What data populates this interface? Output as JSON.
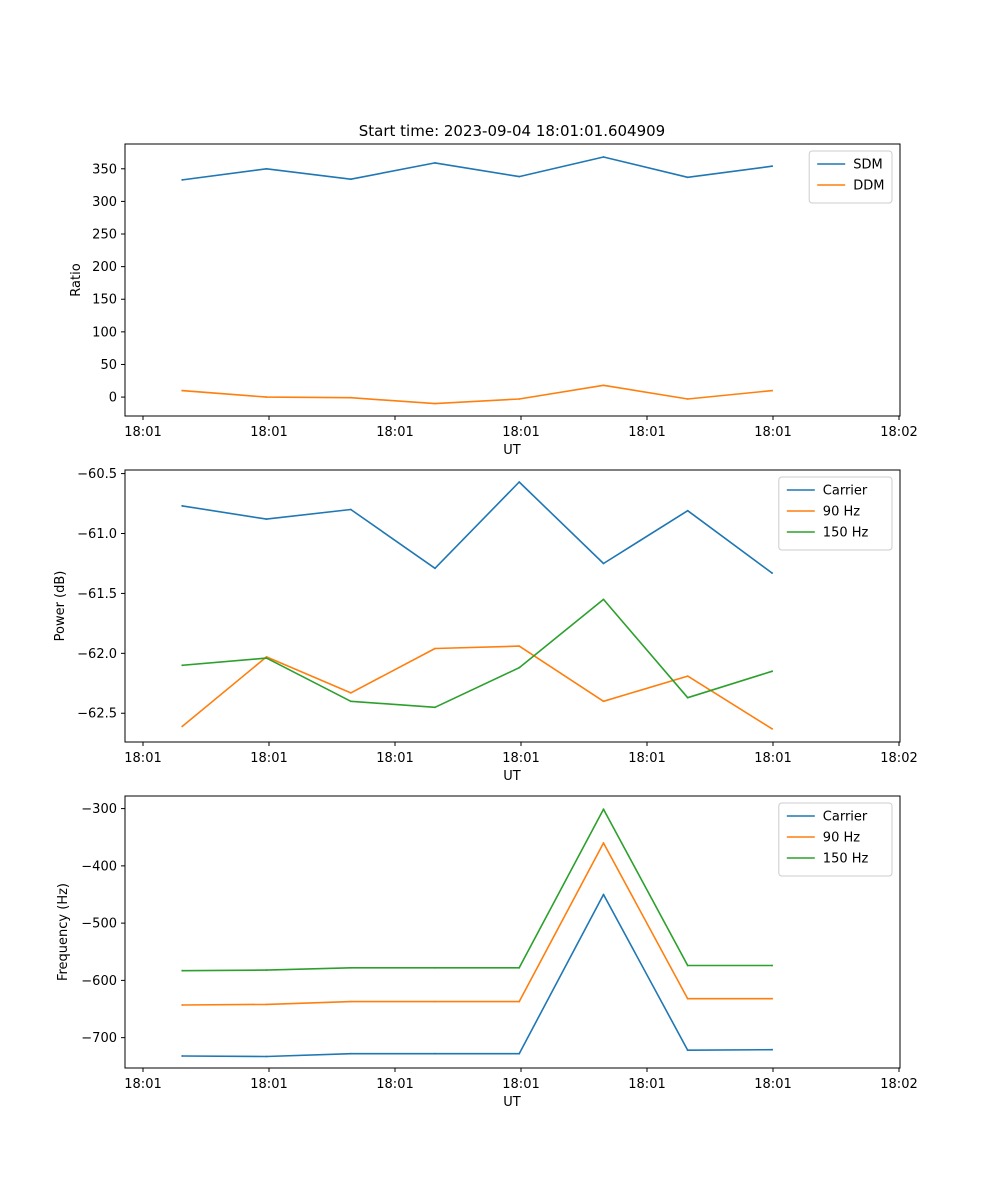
{
  "figure_title": "Start time: 2023-09-04 18:01:01.604909",
  "colors": {
    "blue": "#1f77b4",
    "orange": "#ff7f0e",
    "green": "#2ca02c"
  },
  "chart_data": [
    {
      "type": "line",
      "title": "Start time: 2023-09-04 18:01:01.604909",
      "xlabel": "UT",
      "ylabel": "Ratio",
      "x_tick_labels": [
        "18:01",
        "18:01",
        "18:01",
        "18:01",
        "18:01",
        "18:01",
        "18:02"
      ],
      "y_ticks": [
        0,
        50,
        100,
        150,
        200,
        250,
        300,
        350
      ],
      "y_tick_labels": [
        "0",
        "50",
        "100",
        "150",
        "200",
        "250",
        "300",
        "350"
      ],
      "xlim": [
        -0.46,
        8.74
      ],
      "ylim": [
        -29,
        388
      ],
      "x": [
        0.22,
        1.22,
        2.22,
        3.22,
        4.22,
        5.22,
        6.22,
        7.22
      ],
      "legend_position": "top-right",
      "series": [
        {
          "name": "SDM",
          "color": "#1f77b4",
          "values": [
            333,
            350,
            334,
            359,
            338,
            368,
            337,
            354
          ]
        },
        {
          "name": "DDM",
          "color": "#ff7f0e",
          "values": [
            10,
            0,
            -1,
            -10,
            -3,
            18,
            -3,
            10
          ]
        }
      ]
    },
    {
      "type": "line",
      "title": "",
      "xlabel": "UT",
      "ylabel": "Power (dB)",
      "x_tick_labels": [
        "18:01",
        "18:01",
        "18:01",
        "18:01",
        "18:01",
        "18:01",
        "18:02"
      ],
      "y_ticks": [
        -62.5,
        -62.0,
        -61.5,
        -61.0,
        -60.5
      ],
      "y_tick_labels": [
        "−62.5",
        "−62.0",
        "−61.5",
        "−61.0",
        "−60.5"
      ],
      "xlim": [
        -0.46,
        8.74
      ],
      "ylim": [
        -62.74,
        -60.47
      ],
      "x": [
        0.22,
        1.22,
        2.22,
        3.22,
        4.22,
        5.22,
        6.22,
        7.22
      ],
      "legend_position": "top-right",
      "series": [
        {
          "name": "Carrier",
          "color": "#1f77b4",
          "values": [
            -60.77,
            -60.88,
            -60.8,
            -61.29,
            -60.57,
            -61.25,
            -60.81,
            -61.33
          ]
        },
        {
          "name": "90 Hz",
          "color": "#ff7f0e",
          "values": [
            -62.61,
            -62.03,
            -62.33,
            -61.96,
            -61.94,
            -62.4,
            -62.19,
            -62.63
          ]
        },
        {
          "name": "150 Hz",
          "color": "#2ca02c",
          "values": [
            -62.1,
            -62.04,
            -62.4,
            -62.45,
            -62.12,
            -61.55,
            -62.37,
            -62.15
          ]
        }
      ]
    },
    {
      "type": "line",
      "title": "",
      "xlabel": "UT",
      "ylabel": "Frequency (Hz)",
      "x_tick_labels": [
        "18:01",
        "18:01",
        "18:01",
        "18:01",
        "18:01",
        "18:01",
        "18:02"
      ],
      "y_ticks": [
        -700,
        -600,
        -500,
        -400,
        -300
      ],
      "y_tick_labels": [
        "−700",
        "−600",
        "−500",
        "−400",
        "−300"
      ],
      "xlim": [
        -0.46,
        8.74
      ],
      "ylim": [
        -753,
        -278
      ],
      "x": [
        0.22,
        1.22,
        2.22,
        3.22,
        4.22,
        5.22,
        6.22,
        7.22
      ],
      "legend_position": "top-right",
      "series": [
        {
          "name": "Carrier",
          "color": "#1f77b4",
          "values": [
            -732,
            -733,
            -728,
            -728,
            -728,
            -450,
            -722,
            -721
          ]
        },
        {
          "name": "90 Hz",
          "color": "#ff7f0e",
          "values": [
            -643,
            -642,
            -637,
            -637,
            -637,
            -360,
            -632,
            -632
          ]
        },
        {
          "name": "150 Hz",
          "color": "#2ca02c",
          "values": [
            -583,
            -582,
            -578,
            -578,
            -578,
            -301,
            -574,
            -574
          ]
        }
      ]
    }
  ]
}
